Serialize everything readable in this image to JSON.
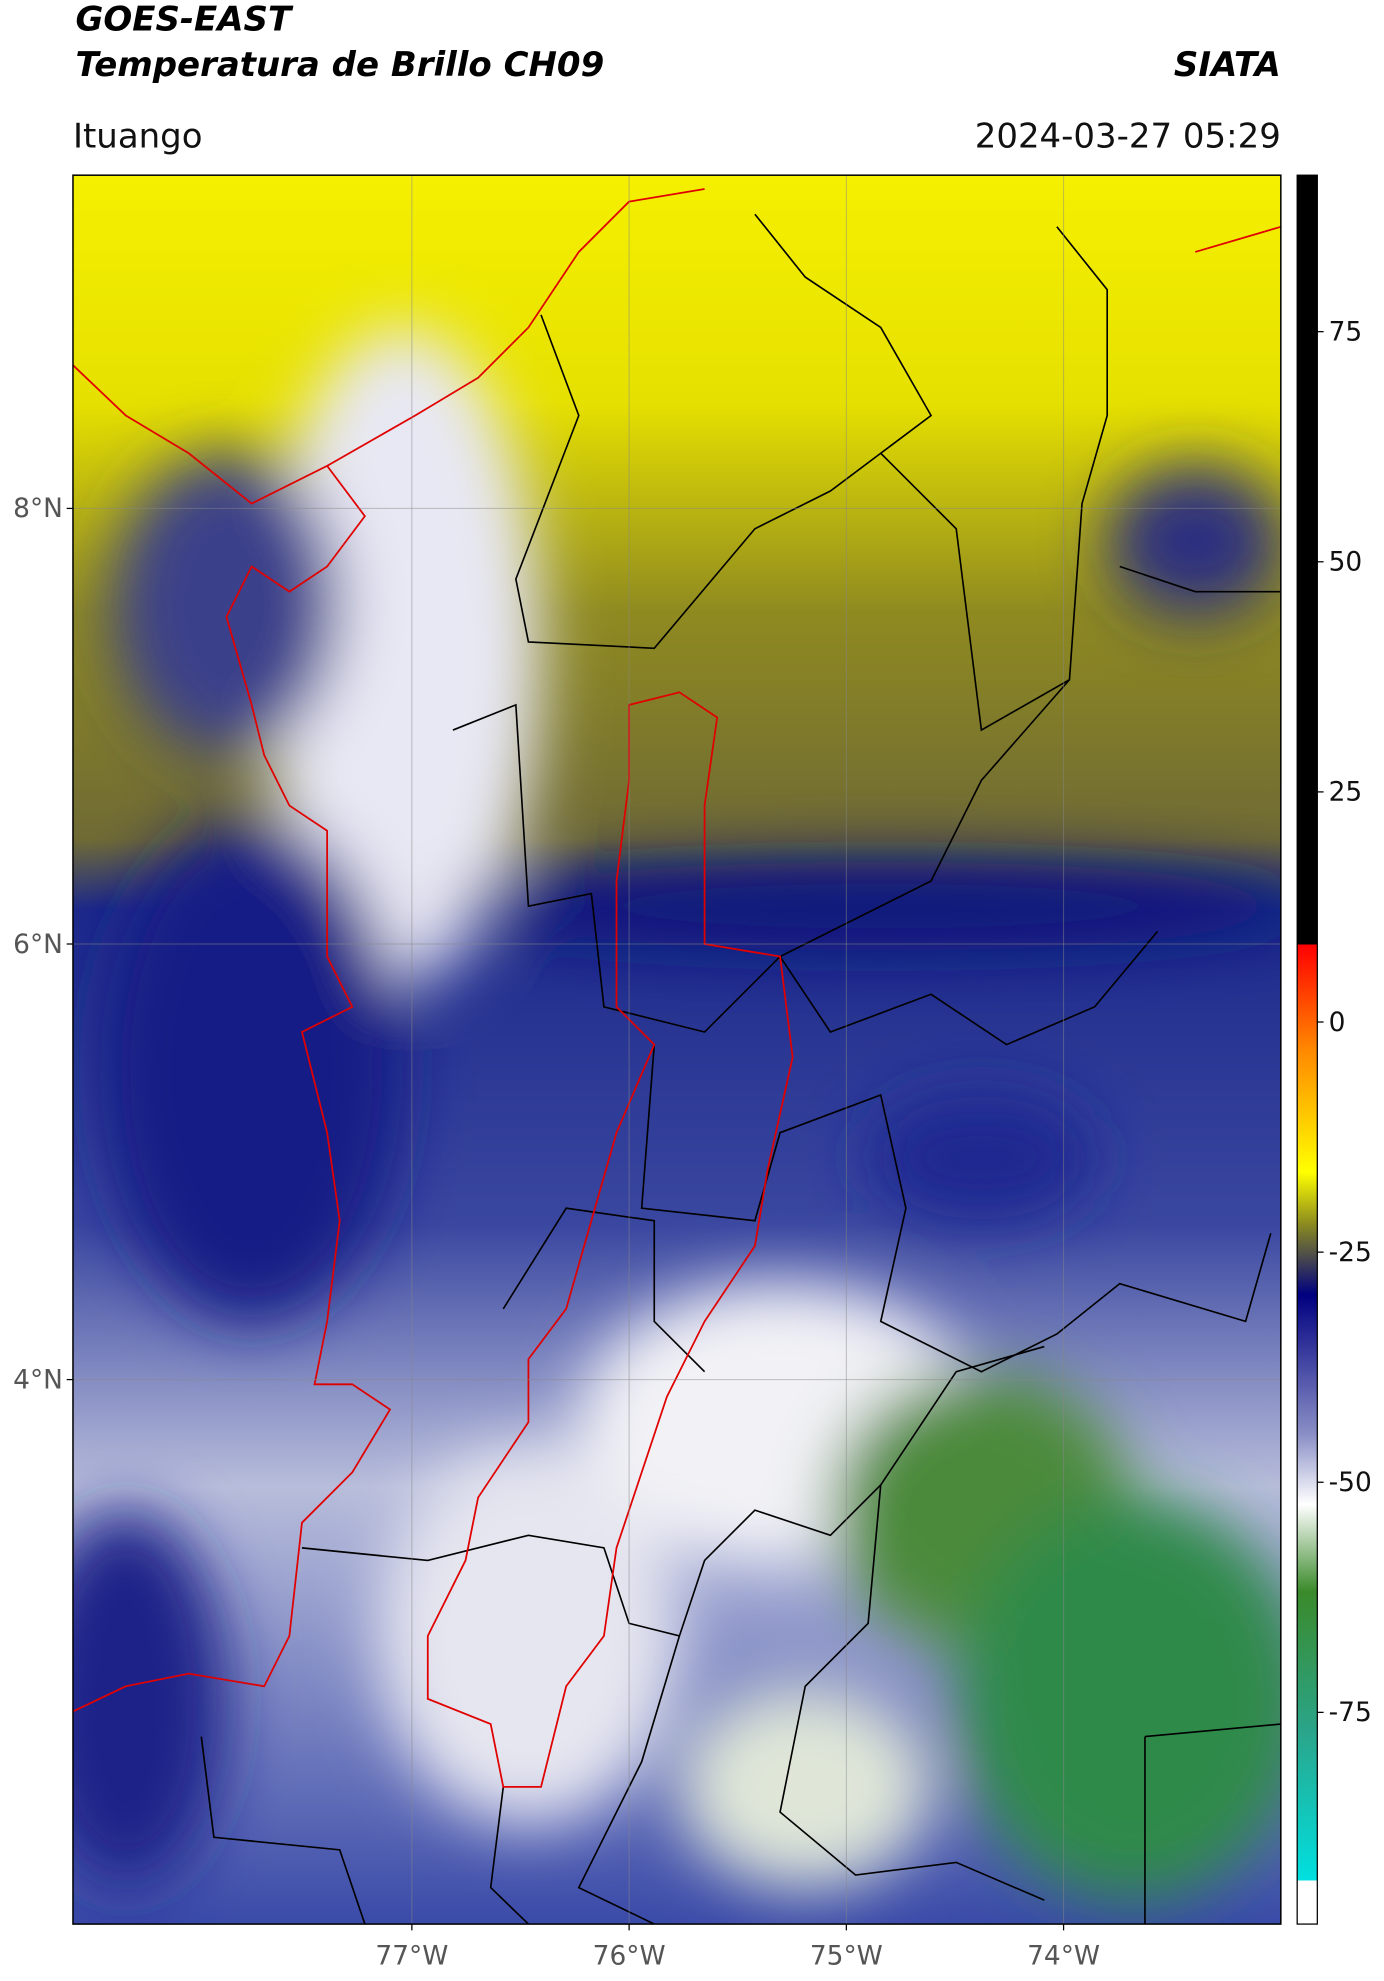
{
  "header": {
    "title": "GOES-EAST",
    "subtitle": "Temperatura de Brillo CH09",
    "agency": "SIATA",
    "location": "Ituango",
    "datetime": "2024-03-27 05:29"
  },
  "map": {
    "lon_extent": [
      -78.56,
      -73.0
    ],
    "lat_extent": [
      1.5,
      9.53
    ],
    "lat_ticks": [
      {
        "value": 8,
        "label": "8°N"
      },
      {
        "value": 6,
        "label": "6°N"
      },
      {
        "value": 4,
        "label": "4°N"
      }
    ],
    "lon_ticks": [
      {
        "value": -77,
        "label": "77°W"
      },
      {
        "value": -76,
        "label": "76°W"
      },
      {
        "value": -75,
        "label": "75°W"
      },
      {
        "value": -74,
        "label": "74°W"
      }
    ]
  },
  "colorbar": {
    "lim": [
      -98,
      92
    ],
    "ticks": [
      75,
      50,
      25,
      0,
      -25,
      -50,
      -75
    ]
  }
}
